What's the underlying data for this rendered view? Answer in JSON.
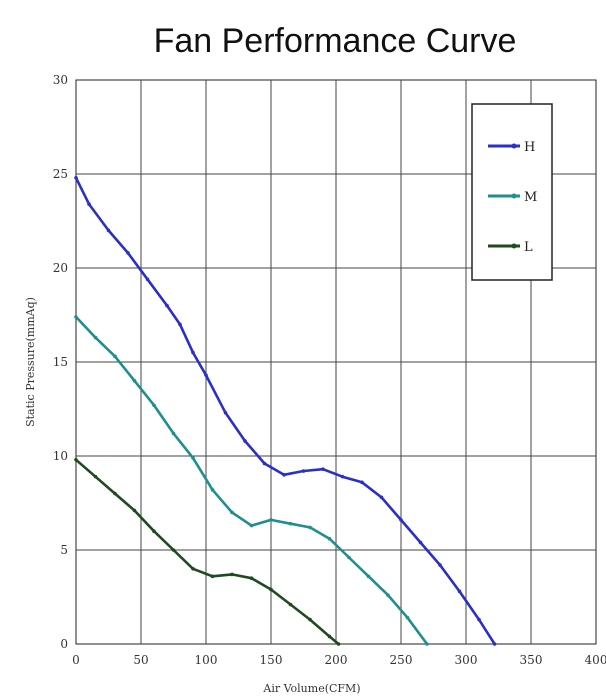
{
  "chart_data": {
    "type": "line",
    "title": "Fan Performance Curve",
    "xlabel": "Air Volume(CFM)",
    "ylabel": "Static Pressure(mmAq)",
    "xlim": [
      0,
      400
    ],
    "ylim": [
      0,
      30
    ],
    "x_ticks": [
      0,
      50,
      100,
      150,
      200,
      250,
      300,
      350,
      400
    ],
    "y_ticks": [
      0,
      5,
      10,
      15,
      20,
      25,
      30
    ],
    "x_tick_labels": [
      "0",
      "50",
      "100",
      "150",
      "200",
      "250",
      "300",
      "350",
      "400"
    ],
    "y_tick_labels": [
      "0",
      "5",
      "10",
      "15",
      "20",
      "25",
      "30"
    ],
    "grid": true,
    "legend_position": "top-right",
    "series": [
      {
        "name": "H",
        "color": "#2a2fc8",
        "points": [
          [
            0,
            24.8
          ],
          [
            10,
            23.4
          ],
          [
            25,
            22.0
          ],
          [
            40,
            20.8
          ],
          [
            55,
            19.4
          ],
          [
            70,
            18.0
          ],
          [
            80,
            17.0
          ],
          [
            90,
            15.5
          ],
          [
            100,
            14.3
          ],
          [
            115,
            12.3
          ],
          [
            130,
            10.8
          ],
          [
            145,
            9.6
          ],
          [
            160,
            9.0
          ],
          [
            175,
            9.2
          ],
          [
            190,
            9.3
          ],
          [
            205,
            8.9
          ],
          [
            220,
            8.6
          ],
          [
            235,
            7.8
          ],
          [
            250,
            6.6
          ],
          [
            265,
            5.4
          ],
          [
            280,
            4.2
          ],
          [
            295,
            2.8
          ],
          [
            310,
            1.3
          ],
          [
            322,
            0.0
          ]
        ]
      },
      {
        "name": "M",
        "color": "#1f8e8e",
        "points": [
          [
            0,
            17.4
          ],
          [
            15,
            16.3
          ],
          [
            30,
            15.3
          ],
          [
            45,
            14.0
          ],
          [
            60,
            12.7
          ],
          [
            75,
            11.2
          ],
          [
            90,
            9.9
          ],
          [
            105,
            8.2
          ],
          [
            120,
            7.0
          ],
          [
            135,
            6.3
          ],
          [
            150,
            6.6
          ],
          [
            165,
            6.4
          ],
          [
            180,
            6.2
          ],
          [
            195,
            5.6
          ],
          [
            210,
            4.6
          ],
          [
            225,
            3.6
          ],
          [
            240,
            2.6
          ],
          [
            255,
            1.4
          ],
          [
            270,
            0.0
          ]
        ]
      },
      {
        "name": "L",
        "color": "#1e4a1e",
        "points": [
          [
            0,
            9.8
          ],
          [
            15,
            8.9
          ],
          [
            30,
            8.0
          ],
          [
            45,
            7.1
          ],
          [
            60,
            6.0
          ],
          [
            75,
            5.0
          ],
          [
            90,
            4.0
          ],
          [
            105,
            3.6
          ],
          [
            120,
            3.7
          ],
          [
            135,
            3.5
          ],
          [
            150,
            2.9
          ],
          [
            165,
            2.1
          ],
          [
            180,
            1.3
          ],
          [
            195,
            0.4
          ],
          [
            202,
            0.0
          ]
        ]
      }
    ]
  }
}
